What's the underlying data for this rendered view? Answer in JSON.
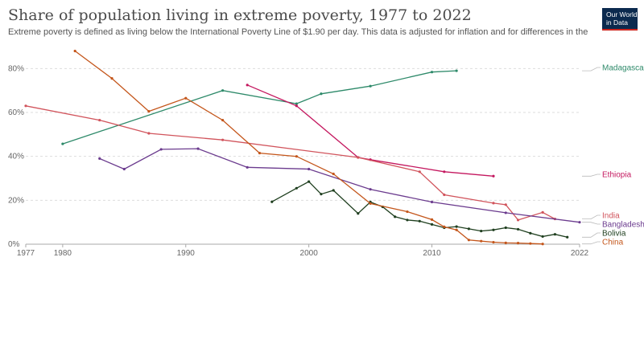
{
  "header": {
    "title": "Share of population living in extreme poverty, 1977 to 2022",
    "subtitle": "Extreme poverty is defined as living below the International Poverty Line of $1.90 per day. This data is adjusted for inflation and for differences in the cost of living between countries.",
    "logo_line1": "Our World",
    "logo_line2": "in Data"
  },
  "colors": {
    "Madagascar": "#2e8a6a",
    "Ethiopia": "#c4185f",
    "India": "#d1545c",
    "Bangladesh": "#6b3b8e",
    "Bolivia": "#1f3f1f",
    "China": "#c4561b"
  },
  "chart_data": {
    "type": "line",
    "title": "Share of population living in extreme poverty, 1977 to 2022",
    "xlim": [
      1977,
      2022
    ],
    "ylim": [
      0,
      90
    ],
    "x_ticks": [
      "1977",
      "1980",
      "1990",
      "2000",
      "2010",
      "2022"
    ],
    "y_ticks": [
      "0%",
      "20%",
      "40%",
      "60%",
      "80%"
    ],
    "legend": "right",
    "grid": "horizontal-dashed",
    "series": [
      {
        "name": "Madagascar",
        "points": [
          [
            1980,
            45.7
          ],
          [
            1993,
            70.0
          ],
          [
            1999,
            64.0
          ],
          [
            2001,
            68.5
          ],
          [
            2005,
            72.0
          ],
          [
            2010,
            78.4
          ],
          [
            2012,
            79.0
          ]
        ]
      },
      {
        "name": "Ethiopia",
        "points": [
          [
            1995,
            72.5
          ],
          [
            1999,
            63.0
          ],
          [
            2004,
            39.5
          ],
          [
            2005,
            38.5
          ],
          [
            2011,
            33.0
          ],
          [
            2015,
            31.0
          ]
        ]
      },
      {
        "name": "India",
        "points": [
          [
            1977,
            63.0
          ],
          [
            1983,
            56.5
          ],
          [
            1987,
            50.5
          ],
          [
            1993,
            47.5
          ],
          [
            2004,
            39.5
          ],
          [
            2009,
            33.0
          ],
          [
            2011,
            22.5
          ],
          [
            2015,
            18.7
          ],
          [
            2016,
            18.0
          ],
          [
            2017,
            11.0
          ],
          [
            2019,
            14.5
          ],
          [
            2020,
            11.5
          ]
        ]
      },
      {
        "name": "Bangladesh",
        "points": [
          [
            1983,
            39.0
          ],
          [
            1985,
            34.2
          ],
          [
            1988,
            43.2
          ],
          [
            1991,
            43.5
          ],
          [
            1995,
            35.0
          ],
          [
            2000,
            34.2
          ],
          [
            2005,
            25.0
          ],
          [
            2010,
            19.2
          ],
          [
            2016,
            14.3
          ],
          [
            2022,
            10.0
          ]
        ]
      },
      {
        "name": "Bolivia",
        "points": [
          [
            1997,
            19.3
          ],
          [
            1999,
            25.5
          ],
          [
            2000,
            28.5
          ],
          [
            2001,
            22.8
          ],
          [
            2002,
            24.5
          ],
          [
            2004,
            14.0
          ],
          [
            2005,
            19.2
          ],
          [
            2006,
            17.0
          ],
          [
            2007,
            12.5
          ],
          [
            2008,
            11.0
          ],
          [
            2009,
            10.5
          ],
          [
            2010,
            9.0
          ],
          [
            2011,
            7.5
          ],
          [
            2012,
            8.0
          ],
          [
            2013,
            7.0
          ],
          [
            2014,
            6.0
          ],
          [
            2015,
            6.5
          ],
          [
            2016,
            7.5
          ],
          [
            2017,
            6.8
          ],
          [
            2018,
            5.0
          ],
          [
            2019,
            3.5
          ],
          [
            2020,
            4.5
          ],
          [
            2021,
            3.2
          ]
        ]
      },
      {
        "name": "China",
        "points": [
          [
            1981,
            88.0
          ],
          [
            1984,
            75.5
          ],
          [
            1987,
            60.5
          ],
          [
            1990,
            66.5
          ],
          [
            1993,
            56.5
          ],
          [
            1996,
            41.5
          ],
          [
            1999,
            40.0
          ],
          [
            2002,
            32.0
          ],
          [
            2005,
            18.5
          ],
          [
            2008,
            14.8
          ],
          [
            2010,
            11.2
          ],
          [
            2011,
            7.9
          ],
          [
            2012,
            6.5
          ],
          [
            2013,
            1.9
          ],
          [
            2014,
            1.4
          ],
          [
            2015,
            0.9
          ],
          [
            2016,
            0.6
          ],
          [
            2017,
            0.5
          ],
          [
            2018,
            0.3
          ],
          [
            2019,
            0.1
          ]
        ]
      }
    ],
    "labels": [
      {
        "name": "Madagascar"
      },
      {
        "name": "Ethiopia"
      },
      {
        "name": "India"
      },
      {
        "name": "Bangladesh"
      },
      {
        "name": "Bolivia"
      },
      {
        "name": "China"
      }
    ]
  }
}
